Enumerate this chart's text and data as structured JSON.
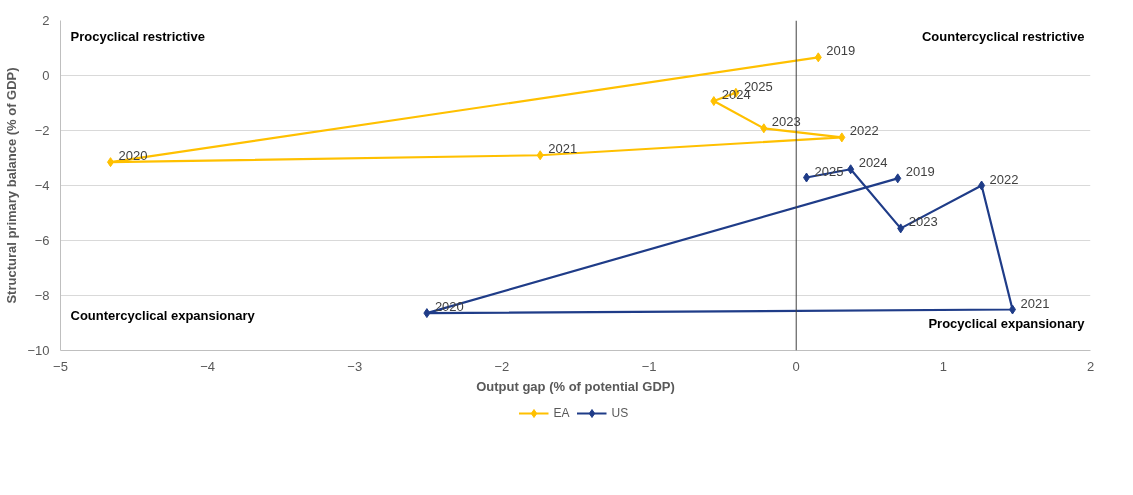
{
  "chart_data": {
    "type": "line",
    "xlabel": "Output gap (% of potential GDP)",
    "ylabel": "Structural primary balance (% of GDP)",
    "xlim": [
      -5,
      2
    ],
    "xticks": [
      -5,
      -4,
      -3,
      -2,
      -1,
      0,
      1,
      2
    ],
    "ylim": [
      -10,
      2
    ],
    "yticks": [
      -10,
      -8,
      -6,
      -4,
      -2,
      0,
      2
    ],
    "grid": "y",
    "legend": "bottom",
    "marker": "diamond",
    "line_style": "solid",
    "ref_lines": [
      {
        "axis": "x",
        "value": 0,
        "color": "#404040"
      }
    ],
    "annotations": [
      "Procyclical restrictive",
      "Countercyclical restrictive",
      "Countercyclical expansionary",
      "Procyclical expansionary",
      {
        "text": "2019",
        "x": 0.15,
        "y": 0.66
      },
      {
        "text": "2020",
        "x": -4.66,
        "y": -3.15
      },
      {
        "text": "2021",
        "x": -1.74,
        "y": -2.9
      },
      {
        "text": "2022",
        "x": 0.31,
        "y": -2.25
      },
      {
        "text": "2023",
        "x": -0.22,
        "y": -1.92
      },
      {
        "text": "2024",
        "x": -0.56,
        "y": -0.93
      },
      {
        "text": "2025",
        "x": -0.41,
        "y": -0.63
      },
      {
        "text": "2019",
        "x": 0.69,
        "y": -3.74
      },
      {
        "text": "2020",
        "x": -2.51,
        "y": -8.64
      },
      {
        "text": "2021",
        "x": 1.47,
        "y": -8.51
      },
      {
        "text": "2022",
        "x": 1.26,
        "y": -4.0
      },
      {
        "text": "2023",
        "x": 0.71,
        "y": -5.56
      },
      {
        "text": "2024",
        "x": 0.37,
        "y": -3.41
      },
      {
        "text": "2025",
        "x": 0.07,
        "y": -3.71
      }
    ],
    "series": [
      {
        "name": "EA",
        "color": "#ffc000",
        "x": [
          0.15,
          -4.66,
          -1.74,
          0.31,
          -0.22,
          -0.56,
          -0.41
        ],
        "values": [
          0.66,
          -3.15,
          -2.9,
          -2.25,
          -1.92,
          -0.93,
          -0.63
        ]
      },
      {
        "name": "US",
        "color": "#1f3c88",
        "x": [
          0.69,
          -2.51,
          1.47,
          1.26,
          0.71,
          0.37,
          0.07
        ],
        "values": [
          -3.74,
          -8.64,
          -8.51,
          -4.0,
          -5.56,
          -3.41,
          -3.71
        ]
      }
    ]
  }
}
